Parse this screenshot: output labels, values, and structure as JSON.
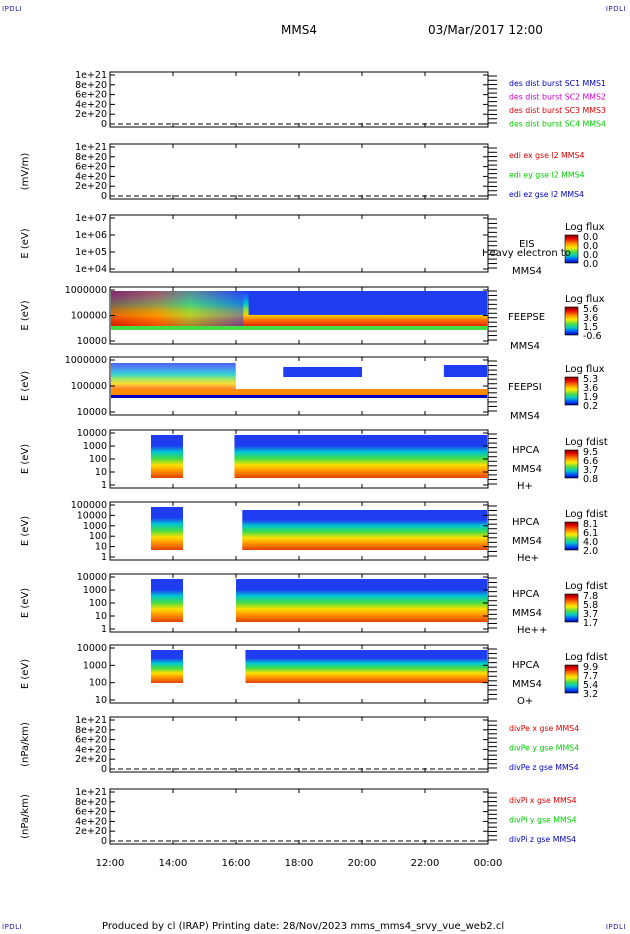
{
  "corners": {
    "top_left": "IPDLI",
    "top_right": "IPDLI",
    "bottom_left": "IPDLI",
    "bottom_right": "IPDLI"
  },
  "header": {
    "spacecraft": "MMS4",
    "date": "03/Mar/2017 12:00"
  },
  "footer": "Produced by cl (IRAP)   Printing date: 28/Nov/2023   mms_mms4_srvy_vue_web2.cl",
  "colors": {
    "red": "#e00000",
    "magenta": "#d000d0",
    "green": "#00cc00",
    "blue": "#0000c0"
  },
  "chart_data": {
    "type": "heatmap",
    "x_ticks": [
      "12:00",
      "14:00",
      "16:00",
      "18:00",
      "20:00",
      "22:00",
      "00:00"
    ],
    "xlim_hours": [
      12,
      24
    ],
    "panels": [
      {
        "id": "mms-curlometer",
        "type": "line",
        "ylabel": "",
        "yticks": [
          "1e+21",
          "8e+20",
          "6e+20",
          "4e+20",
          "2e+20",
          "0"
        ],
        "legend": [
          {
            "text": "des dist burst SC1 MMS1",
            "color": "blue"
          },
          {
            "text": "des dist burst SC2 MMS2",
            "color": "magenta"
          },
          {
            "text": "des dist burst SC3 MMS3",
            "color": "red"
          },
          {
            "text": "des dist burst SC4 MMS4",
            "color": "green"
          }
        ],
        "series": []
      },
      {
        "id": "edi-e",
        "type": "line",
        "ylabel": "(mV/m)",
        "yticks": [
          "1e+21",
          "8e+20",
          "6e+20",
          "4e+20",
          "2e+20",
          "0"
        ],
        "legend": [
          {
            "text": "edi ex gse l2 MMS4",
            "color": "red"
          },
          {
            "text": "edi ey gse l2 MMS4",
            "color": "green"
          },
          {
            "text": "edi ez gse l2 MMS4",
            "color": "blue"
          }
        ],
        "series": []
      },
      {
        "id": "eis",
        "type": "heatmap",
        "ylabel": "E (eV)",
        "yticks": [
          "1e+07",
          "1e+06",
          "1e+05",
          "1e+04"
        ],
        "ylog": true,
        "labels": [
          "EIS",
          "Heavy electron to",
          "MMS4"
        ],
        "cbar_title": "Log flux",
        "cbar_ticks": [
          "0.0",
          "0.0",
          "0.0",
          "0.0"
        ],
        "blocks": []
      },
      {
        "id": "feepse",
        "type": "heatmap",
        "ylabel": "E (eV)",
        "yticks": [
          "1000000",
          "100000",
          "10000"
        ],
        "ylog": true,
        "labels": [
          "FEEPSE",
          "MMS4"
        ],
        "cbar_title": "Log flux",
        "cbar_ticks": [
          "5.6",
          "3.6",
          "1.5",
          "-0.6"
        ],
        "blocks": [
          {
            "t0": 12.0,
            "t1": 24.0,
            "level": "active"
          }
        ]
      },
      {
        "id": "feepsi",
        "type": "heatmap",
        "ylabel": "E (eV)",
        "yticks": [
          "1000000",
          "100000",
          "10000"
        ],
        "ylog": true,
        "labels": [
          "FEEPSI",
          "MMS4"
        ],
        "cbar_title": "Log flux",
        "cbar_ticks": [
          "5.3",
          "3.6",
          "1.9",
          "0.2"
        ],
        "blocks": [
          {
            "t0": 12.0,
            "t1": 24.0,
            "level": "active"
          }
        ]
      },
      {
        "id": "hpca-h",
        "type": "heatmap",
        "ylabel": "E (eV)",
        "yticks": [
          "10000",
          "1000",
          "100",
          "10",
          "1"
        ],
        "ylog": true,
        "labels": [
          "HPCA",
          "MMS4",
          "H+"
        ],
        "cbar_title": "Log fdist",
        "cbar_ticks": [
          "9.5",
          "6.6",
          "3.7",
          "0.8"
        ],
        "blocks": [
          {
            "t0": 13.3,
            "t1": 14.35
          },
          {
            "t0": 15.95,
            "t1": 24.0
          }
        ]
      },
      {
        "id": "hpca-he",
        "type": "heatmap",
        "ylabel": "E (eV)",
        "yticks": [
          "100000",
          "10000",
          "1000",
          "100",
          "10",
          "1"
        ],
        "ylog": true,
        "labels": [
          "HPCA",
          "MMS4",
          "He+"
        ],
        "cbar_title": "Log fdist",
        "cbar_ticks": [
          "8.1",
          "6.1",
          "4.0",
          "2.0"
        ],
        "blocks": [
          {
            "t0": 13.3,
            "t1": 14.35
          },
          {
            "t0": 16.2,
            "t1": 24.0
          }
        ]
      },
      {
        "id": "hpca-he2",
        "type": "heatmap",
        "ylabel": "E (eV)",
        "yticks": [
          "10000",
          "1000",
          "100",
          "10",
          "1"
        ],
        "ylog": true,
        "labels": [
          "HPCA",
          "MMS4",
          "He++"
        ],
        "cbar_title": "Log fdist",
        "cbar_ticks": [
          "7.8",
          "5.8",
          "3.7",
          "1.7"
        ],
        "blocks": [
          {
            "t0": 13.3,
            "t1": 14.35
          },
          {
            "t0": 16.0,
            "t1": 24.0
          }
        ]
      },
      {
        "id": "hpca-o",
        "type": "heatmap",
        "ylabel": "E (eV)",
        "yticks": [
          "10000",
          "1000",
          "100",
          "10"
        ],
        "ylog": true,
        "labels": [
          "HPCA",
          "MMS4",
          "O+"
        ],
        "cbar_title": "Log fdist",
        "cbar_ticks": [
          "9.9",
          "7.7",
          "5.4",
          "3.2"
        ],
        "blocks": [
          {
            "t0": 13.3,
            "t1": 14.35
          },
          {
            "t0": 16.3,
            "t1": 24.0
          }
        ]
      },
      {
        "id": "divpe",
        "type": "line",
        "ylabel": "(nPa/km)",
        "yticks": [
          "1e+21",
          "8e+20",
          "6e+20",
          "4e+20",
          "2e+20",
          "0"
        ],
        "legend": [
          {
            "text": "divPe x gse MMS4",
            "color": "red"
          },
          {
            "text": "divPe y gse MMS4",
            "color": "green"
          },
          {
            "text": "divPe z gse MMS4",
            "color": "blue"
          }
        ],
        "series": []
      },
      {
        "id": "divpi",
        "type": "line",
        "ylabel": "(nPa/km)",
        "yticks": [
          "1e+21",
          "8e+20",
          "6e+20",
          "4e+20",
          "2e+20",
          "0"
        ],
        "legend": [
          {
            "text": "divPi x gse MMS4",
            "color": "red"
          },
          {
            "text": "divPi y gse MMS4",
            "color": "green"
          },
          {
            "text": "divPi z gse MMS4",
            "color": "blue"
          }
        ],
        "series": []
      }
    ]
  }
}
